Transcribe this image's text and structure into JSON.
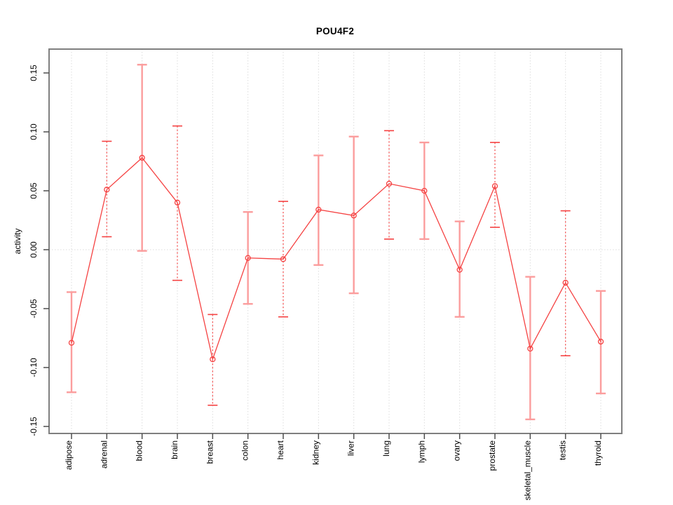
{
  "title": "POU4F2",
  "colors": {
    "series": "#f54242",
    "errorbar_solid": "#fb9d9d",
    "errorbar_dotted": "#f54242",
    "grid": "#dcdcdc",
    "box": "#7f7f7f",
    "tick": "#4d4d4d",
    "text": "#000000",
    "background": "#ffffff"
  },
  "chart_data": {
    "type": "line",
    "subtype": "points-with-error-bars",
    "title": "POU4F2",
    "xlabel": "",
    "ylabel": "activity",
    "ylim": [
      -0.15,
      0.15
    ],
    "yticks": [
      -0.15,
      -0.1,
      -0.05,
      0.0,
      0.05,
      0.1,
      0.15
    ],
    "ytick_labels": [
      "-0.15",
      "-0.10",
      "-0.05",
      "0.00",
      "0.05",
      "0.10",
      "0.15"
    ],
    "grid": "vertical dotted gridline at every category; horizontal dotted gridline at y=0",
    "legend": "none",
    "marker": "open-circle",
    "categories": [
      "adipose",
      "adrenal",
      "blood",
      "brain",
      "breast",
      "colon",
      "heart",
      "kidney",
      "liver",
      "lung",
      "lymph",
      "ovary",
      "prostate",
      "skeletal_muscle",
      "testis",
      "thyroid"
    ],
    "series": [
      {
        "name": "activity",
        "values": [
          -0.079,
          0.051,
          0.078,
          0.04,
          -0.093,
          -0.007,
          -0.008,
          0.034,
          0.029,
          0.056,
          0.05,
          -0.017,
          0.054,
          -0.084,
          -0.028,
          -0.078
        ],
        "error_low": [
          -0.121,
          0.011,
          -0.001,
          -0.026,
          -0.132,
          -0.046,
          -0.057,
          -0.013,
          -0.037,
          0.009,
          0.009,
          -0.057,
          0.019,
          -0.144,
          -0.09,
          -0.122
        ],
        "error_high": [
          -0.036,
          0.092,
          0.157,
          0.105,
          -0.055,
          0.032,
          0.041,
          0.08,
          0.096,
          0.101,
          0.091,
          0.024,
          0.091,
          -0.023,
          0.033,
          -0.035
        ],
        "error_bar_styles": [
          "solid",
          "dotted",
          "solid",
          "dotted",
          "dotted",
          "solid",
          "dotted",
          "solid",
          "solid",
          "dotted",
          "solid",
          "solid",
          "dotted",
          "solid",
          "dotted",
          "solid"
        ]
      }
    ]
  }
}
